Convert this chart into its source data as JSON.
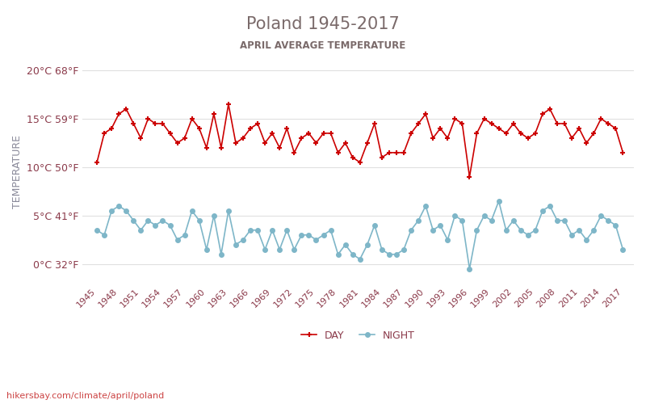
{
  "title": "Poland 1945-2017",
  "subtitle": "APRIL AVERAGE TEMPERATURE",
  "ylabel": "TEMPERATURE",
  "watermark": "hikersbay.com/climate/april/poland",
  "years": [
    1945,
    1946,
    1947,
    1948,
    1949,
    1950,
    1951,
    1952,
    1953,
    1954,
    1955,
    1956,
    1957,
    1958,
    1959,
    1960,
    1961,
    1962,
    1963,
    1964,
    1965,
    1966,
    1967,
    1968,
    1969,
    1970,
    1971,
    1972,
    1973,
    1974,
    1975,
    1976,
    1977,
    1978,
    1979,
    1980,
    1981,
    1982,
    1983,
    1984,
    1985,
    1986,
    1987,
    1988,
    1989,
    1990,
    1991,
    1992,
    1993,
    1994,
    1995,
    1996,
    1997,
    1998,
    1999,
    2000,
    2001,
    2002,
    2003,
    2004,
    2005,
    2006,
    2007,
    2008,
    2009,
    2010,
    2011,
    2012,
    2013,
    2014,
    2015,
    2016,
    2017
  ],
  "day": [
    10.5,
    13.5,
    14.0,
    15.5,
    16.0,
    14.5,
    13.0,
    15.0,
    14.5,
    14.5,
    13.5,
    12.5,
    13.0,
    15.0,
    14.0,
    12.0,
    15.5,
    12.0,
    16.5,
    12.5,
    13.0,
    14.0,
    14.5,
    12.5,
    13.5,
    12.0,
    14.0,
    11.5,
    13.0,
    13.5,
    12.5,
    13.5,
    13.5,
    11.5,
    12.5,
    11.0,
    10.5,
    12.5,
    14.5,
    11.0,
    11.5,
    11.5,
    11.5,
    13.5,
    14.5,
    15.5,
    13.0,
    14.0,
    13.0,
    15.0,
    14.5,
    9.0,
    13.5,
    15.0,
    14.5,
    14.0,
    13.5,
    14.5,
    13.5,
    13.0,
    13.5,
    15.5,
    16.0,
    14.5,
    14.5,
    13.0,
    14.0,
    12.5,
    13.5,
    15.0,
    14.5,
    14.0,
    11.5
  ],
  "night": [
    3.5,
    3.0,
    5.5,
    6.0,
    5.5,
    4.5,
    3.5,
    4.5,
    4.0,
    4.5,
    4.0,
    2.5,
    3.0,
    5.5,
    4.5,
    1.5,
    5.0,
    1.0,
    5.5,
    2.0,
    2.5,
    3.5,
    3.5,
    1.5,
    3.5,
    1.5,
    3.5,
    1.5,
    3.0,
    3.0,
    2.5,
    3.0,
    3.5,
    1.0,
    2.0,
    1.0,
    0.5,
    2.0,
    4.0,
    1.5,
    1.0,
    1.0,
    1.5,
    3.5,
    4.5,
    6.0,
    3.5,
    4.0,
    2.5,
    5.0,
    4.5,
    -0.5,
    3.5,
    5.0,
    4.5,
    6.5,
    3.5,
    4.5,
    3.5,
    3.0,
    3.5,
    5.5,
    6.0,
    4.5,
    4.5,
    3.0,
    3.5,
    2.5,
    3.5,
    5.0,
    4.5,
    4.0,
    1.5
  ],
  "day_color": "#cc0000",
  "night_color": "#7eb6c8",
  "title_color": "#7a6a6a",
  "subtitle_color": "#7a6a6a",
  "label_color": "#8b3a4a",
  "ylabel_color": "#8a8a9a",
  "grid_color": "#e0e0e0",
  "watermark_color": "#cc4444",
  "ylim": [
    -2,
    21
  ],
  "yticks_c": [
    0,
    5,
    10,
    15,
    20
  ],
  "yticks_f": [
    32,
    41,
    50,
    59,
    68
  ],
  "xtick_years": [
    1945,
    1948,
    1951,
    1954,
    1957,
    1960,
    1963,
    1966,
    1969,
    1972,
    1975,
    1978,
    1981,
    1984,
    1987,
    1990,
    1993,
    1996,
    1999,
    2002,
    2005,
    2008,
    2011,
    2014,
    2017
  ]
}
